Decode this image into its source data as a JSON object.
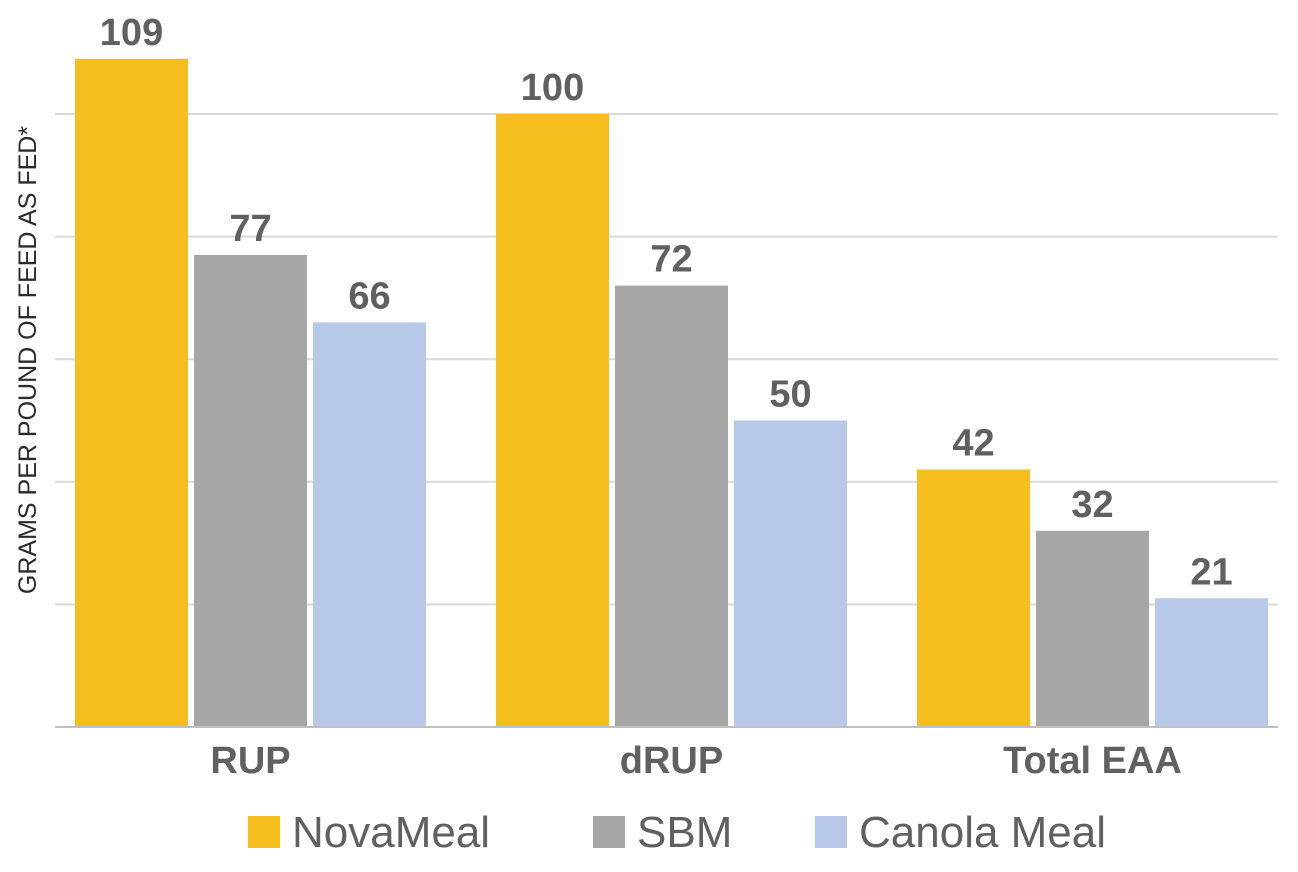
{
  "chart_data": {
    "type": "bar",
    "title": "",
    "xlabel": "",
    "ylabel": "GRAMS PER POUND OF FEED AS FED*",
    "categories": [
      "RUP",
      "dRUP",
      "Total EAA"
    ],
    "series": [
      {
        "name": "NovaMeal",
        "color": "#f5be1c",
        "values": [
          109,
          100,
          42
        ]
      },
      {
        "name": "SBM",
        "color": "#a6a6a5",
        "values": [
          77,
          72,
          32
        ]
      },
      {
        "name": "Canola Meal",
        "color": "#b7c8e8",
        "values": [
          66,
          50,
          21
        ]
      }
    ],
    "ylim": [
      0,
      100
    ],
    "yticks": [
      0,
      20,
      40,
      60,
      80,
      100
    ],
    "grid": true,
    "data_labels": true,
    "legend": "bottom"
  }
}
